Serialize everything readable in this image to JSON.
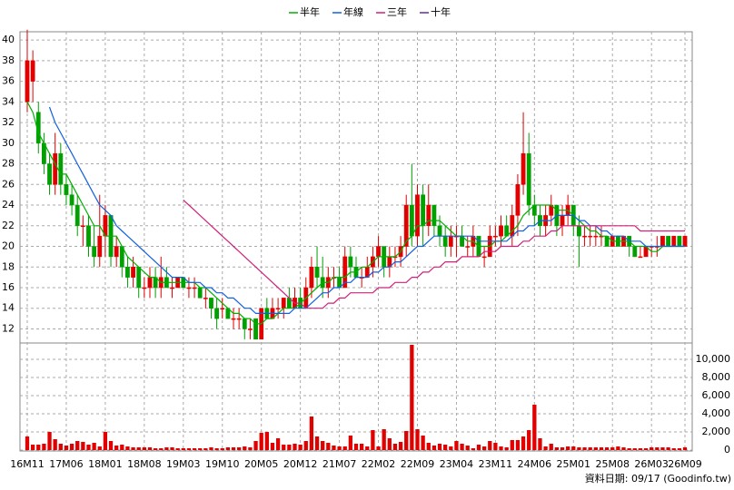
{
  "chart_data": {
    "type": "candlestick",
    "legend": [
      "半年",
      "年線",
      "三年",
      "十年"
    ],
    "categories": [
      "16M11",
      null,
      null,
      null,
      null,
      null,
      null,
      "17M06",
      null,
      null,
      null,
      null,
      null,
      null,
      "18M01",
      null,
      null,
      null,
      null,
      null,
      null,
      "18M08",
      null,
      null,
      null,
      null,
      null,
      null,
      "19M03",
      null,
      null,
      null,
      null,
      null,
      null,
      "19M10",
      null,
      null,
      null,
      null,
      null,
      null,
      "20M05",
      null,
      null,
      null,
      null,
      null,
      null,
      "20M12",
      null,
      null,
      null,
      null,
      null,
      null,
      "21M07",
      null,
      null,
      null,
      null,
      null,
      null,
      "22M02",
      null,
      null,
      null,
      null,
      null,
      null,
      "22M09",
      null,
      null,
      null,
      null,
      null,
      null,
      "23M04",
      null,
      null,
      null,
      null,
      null,
      null,
      "23M11",
      null,
      null,
      null,
      null,
      null,
      null,
      "24M06",
      null,
      null,
      null,
      null,
      null,
      null,
      "25M01",
      null,
      null,
      null,
      null,
      null,
      null,
      "25M08",
      null,
      null,
      null,
      null,
      null,
      null,
      "26M03",
      null,
      null,
      null,
      null,
      null,
      "26M09"
    ],
    "ohlc": [
      [
        34,
        41,
        33,
        38
      ],
      [
        36,
        39,
        34,
        38
      ],
      [
        33,
        34,
        29,
        30
      ],
      [
        30,
        31,
        27,
        28
      ],
      [
        28,
        29,
        25,
        26
      ],
      [
        26,
        31,
        25,
        29
      ],
      [
        29,
        30,
        25,
        26
      ],
      [
        26,
        27,
        24,
        25
      ],
      [
        25,
        26,
        23,
        24
      ],
      [
        24,
        25,
        21,
        22
      ],
      [
        22,
        23,
        20,
        22
      ],
      [
        22,
        23,
        19,
        20
      ],
      [
        20,
        22,
        18,
        19
      ],
      [
        19,
        25,
        18,
        21
      ],
      [
        21,
        24,
        19,
        23
      ],
      [
        23,
        23,
        18,
        19
      ],
      [
        19,
        21,
        18,
        20
      ],
      [
        20,
        20,
        17,
        18
      ],
      [
        18,
        19,
        16,
        17
      ],
      [
        17,
        19,
        16,
        18
      ],
      [
        18,
        18,
        15,
        16
      ],
      [
        16,
        17,
        15,
        16
      ],
      [
        16,
        18,
        15,
        17
      ],
      [
        17,
        18,
        15,
        16
      ],
      [
        16,
        19,
        15,
        17
      ],
      [
        17,
        18,
        16,
        16
      ],
      [
        16,
        17,
        15,
        16
      ],
      [
        16,
        17,
        16,
        17
      ],
      [
        17,
        17,
        16,
        16
      ],
      [
        16,
        17,
        15,
        16
      ],
      [
        16,
        17,
        15,
        16
      ],
      [
        16,
        16,
        15,
        15
      ],
      [
        15,
        16,
        14,
        15
      ],
      [
        15,
        15,
        13,
        14
      ],
      [
        14,
        15,
        12,
        13
      ],
      [
        14,
        15,
        13,
        14
      ],
      [
        14,
        14,
        13,
        13
      ],
      [
        13,
        14,
        12,
        13
      ],
      [
        13,
        14,
        12,
        13
      ],
      [
        13,
        13,
        11,
        12
      ],
      [
        12,
        13,
        11,
        12
      ],
      [
        13,
        13,
        11,
        11
      ],
      [
        11,
        14,
        11,
        14
      ],
      [
        14,
        15,
        13,
        13
      ],
      [
        13,
        15,
        13,
        14
      ],
      [
        14,
        15,
        13,
        14
      ],
      [
        14,
        15,
        13,
        15
      ],
      [
        15,
        16,
        14,
        14
      ],
      [
        14,
        16,
        14,
        15
      ],
      [
        15,
        16,
        14,
        14
      ],
      [
        14,
        17,
        14,
        16
      ],
      [
        16,
        19,
        15,
        18
      ],
      [
        18,
        20,
        16,
        17
      ],
      [
        17,
        19,
        15,
        16
      ],
      [
        16,
        18,
        15,
        17
      ],
      [
        17,
        18,
        16,
        17
      ],
      [
        17,
        18,
        16,
        16
      ],
      [
        16,
        20,
        16,
        19
      ],
      [
        19,
        20,
        17,
        18
      ],
      [
        18,
        19,
        17,
        17
      ],
      [
        17,
        18,
        16,
        17
      ],
      [
        17,
        19,
        17,
        18
      ],
      [
        18,
        20,
        17,
        19
      ],
      [
        19,
        21,
        18,
        20
      ],
      [
        20,
        20,
        17,
        18
      ],
      [
        18,
        20,
        17,
        19
      ],
      [
        19,
        20,
        18,
        19
      ],
      [
        19,
        21,
        18,
        20
      ],
      [
        20,
        25,
        19,
        24
      ],
      [
        24,
        28,
        20,
        21
      ],
      [
        21,
        26,
        20,
        25
      ],
      [
        25,
        26,
        20,
        22
      ],
      [
        22,
        26,
        21,
        24
      ],
      [
        24,
        24,
        21,
        22
      ],
      [
        22,
        23,
        20,
        21
      ],
      [
        21,
        22,
        19,
        20
      ],
      [
        20,
        22,
        19,
        21
      ],
      [
        21,
        22,
        19,
        21
      ],
      [
        21,
        22,
        20,
        20
      ],
      [
        20,
        21,
        19,
        20
      ],
      [
        20,
        22,
        19,
        21
      ],
      [
        21,
        21,
        19,
        19
      ],
      [
        19,
        20,
        18,
        19
      ],
      [
        19,
        22,
        19,
        21
      ],
      [
        21,
        22,
        20,
        21
      ],
      [
        21,
        23,
        20,
        22
      ],
      [
        22,
        23,
        21,
        21
      ],
      [
        21,
        24,
        20,
        23
      ],
      [
        23,
        27,
        21,
        26
      ],
      [
        26,
        33,
        25,
        29
      ],
      [
        29,
        31,
        23,
        24
      ],
      [
        24,
        25,
        22,
        23
      ],
      [
        23,
        24,
        21,
        22
      ],
      [
        22,
        24,
        21,
        23
      ],
      [
        23,
        25,
        22,
        24
      ],
      [
        24,
        24,
        21,
        22
      ],
      [
        22,
        24,
        21,
        23
      ],
      [
        23,
        25,
        22,
        24
      ],
      [
        24,
        24,
        21,
        22
      ],
      [
        22,
        23,
        18,
        21
      ],
      [
        21,
        22,
        20,
        21
      ],
      [
        21,
        22,
        20,
        21
      ],
      [
        21,
        22,
        20,
        21
      ],
      [
        21,
        22,
        20,
        21
      ],
      [
        21,
        21,
        20,
        20
      ],
      [
        20,
        21,
        20,
        21
      ],
      [
        21,
        21,
        20,
        20
      ],
      [
        20,
        21,
        20,
        21
      ],
      [
        21,
        21,
        19,
        20
      ],
      [
        20,
        20,
        19,
        19
      ],
      [
        19,
        20,
        19,
        19
      ],
      [
        19,
        20,
        19,
        20
      ],
      [
        20,
        20,
        19,
        20
      ],
      [
        20,
        21,
        19,
        20
      ],
      [
        20,
        21,
        20,
        21
      ],
      [
        21,
        21,
        20,
        20
      ],
      [
        20,
        21,
        20,
        21
      ],
      [
        21,
        21,
        20,
        20
      ],
      [
        20,
        21,
        20,
        21
      ]
    ],
    "up_color": "#e00000",
    "down_color": "#00a000",
    "series": [
      {
        "name": "半年",
        "color": "#00b000",
        "values": [
          34,
          33,
          31,
          30,
          29,
          28,
          27,
          27,
          26,
          25,
          24,
          23,
          22,
          22,
          21,
          21,
          21,
          20,
          19,
          18.5,
          18,
          17.5,
          17,
          17,
          16.5,
          16.5,
          16.5,
          16.5,
          16.5,
          16.5,
          16.5,
          16,
          16,
          15.5,
          15,
          14.5,
          14,
          13.5,
          13.5,
          13,
          13,
          12.5,
          12.5,
          13,
          13,
          13.5,
          14,
          14,
          14,
          14.5,
          15,
          15.5,
          16,
          16.5,
          16.5,
          17,
          17,
          17,
          17.5,
          17.5,
          18,
          18,
          18.5,
          19,
          19,
          19,
          19,
          19.5,
          20.5,
          21,
          22,
          22,
          22.5,
          22.5,
          22.5,
          22,
          21.5,
          21,
          21,
          20.5,
          20.5,
          20,
          20,
          20,
          20.5,
          20.5,
          21,
          21.5,
          22,
          23,
          23.5,
          24,
          24,
          24,
          24,
          23.5,
          23.5,
          23.5,
          23,
          22.5,
          22,
          21.5,
          21.5,
          21,
          21,
          20.5,
          20.5,
          20.5,
          20.5,
          20,
          20,
          20,
          19.5,
          19.5,
          20,
          20,
          20,
          20,
          20
        ]
      },
      {
        "name": "年線",
        "color": "#1060e0",
        "values": [
          null,
          null,
          null,
          null,
          33.5,
          32,
          31,
          30,
          29,
          28,
          27,
          26,
          25,
          24,
          23.5,
          23,
          22,
          21.5,
          21,
          20.5,
          20,
          19.5,
          19,
          18.5,
          18,
          17.5,
          17,
          17,
          17,
          16.5,
          16.5,
          16.5,
          16,
          16,
          15.5,
          15.5,
          15,
          15,
          14.5,
          14,
          14,
          13.5,
          13.5,
          13.5,
          13.5,
          13.5,
          13.5,
          13.5,
          14,
          14,
          14,
          14.5,
          15,
          15.5,
          15.5,
          16,
          16,
          16.5,
          16.5,
          17,
          17,
          17,
          17.5,
          17.5,
          18,
          18,
          18.5,
          18.5,
          19,
          19.5,
          20,
          20,
          20.5,
          21,
          21,
          21,
          21,
          21,
          21,
          21,
          21,
          20.5,
          20.5,
          20.5,
          20.5,
          20.5,
          20.5,
          21,
          21.5,
          21.5,
          22,
          22,
          22.5,
          22.5,
          22.5,
          23,
          23,
          23,
          23,
          22.5,
          22.5,
          22,
          22,
          21.5,
          21.5,
          21,
          21,
          21,
          20.5,
          20.5,
          20.5,
          20,
          20,
          20,
          20,
          20,
          20,
          20,
          20
        ]
      },
      {
        "name": "三年",
        "color": "#d0207a",
        "values": [
          null,
          null,
          null,
          null,
          null,
          null,
          null,
          null,
          null,
          null,
          null,
          null,
          null,
          null,
          null,
          null,
          null,
          null,
          null,
          null,
          null,
          null,
          null,
          null,
          null,
          null,
          null,
          null,
          24.5,
          24,
          23.5,
          23,
          22.5,
          22,
          21.5,
          21,
          20.5,
          20,
          19.5,
          19,
          18.5,
          18,
          17.5,
          17,
          16.5,
          16,
          15.5,
          15,
          14.5,
          14.5,
          14,
          14,
          14,
          14,
          14.5,
          14.5,
          15,
          15,
          15.5,
          15.5,
          15.5,
          15.5,
          15.5,
          16,
          16,
          16,
          16.5,
          16.5,
          16.5,
          17,
          17,
          17.5,
          17.5,
          18,
          18,
          18.5,
          18.5,
          18.5,
          19,
          19,
          19,
          19,
          19.5,
          19.5,
          19.5,
          20,
          20,
          20,
          20,
          20.5,
          20.5,
          21,
          21,
          21,
          21.5,
          21.5,
          22,
          22,
          22,
          22,
          22,
          22,
          22,
          22,
          22,
          22,
          22,
          22,
          22,
          22,
          21.5,
          21.5,
          21.5,
          21.5,
          21.5,
          21.5,
          21.5,
          21.5,
          21.5
        ]
      },
      {
        "name": "十年",
        "color": "#6030a0",
        "values": [
          null,
          null,
          null,
          null,
          null,
          null,
          null,
          null,
          null,
          null,
          null,
          null,
          null,
          null,
          null,
          null,
          null,
          null,
          null,
          null,
          null,
          null,
          null,
          null,
          null,
          null,
          null,
          null,
          null,
          null,
          null,
          null,
          null,
          null,
          null,
          null,
          null,
          null,
          null,
          null,
          null,
          null,
          null,
          null,
          null,
          null,
          null,
          null,
          null,
          null,
          null,
          null,
          null,
          null,
          null,
          null,
          null,
          null,
          null,
          null,
          null,
          null,
          null,
          null,
          null,
          null,
          null,
          null,
          null,
          null,
          null,
          null,
          null,
          null,
          null,
          null,
          null,
          null,
          null,
          null,
          null,
          null,
          null,
          null,
          null,
          null,
          null,
          null,
          null,
          null,
          null,
          null,
          null,
          null,
          null,
          null,
          null,
          null,
          null,
          null,
          null,
          null,
          null,
          null,
          null,
          null,
          null,
          null,
          null,
          null,
          null,
          null,
          null,
          null,
          null,
          null,
          null,
          null,
          null
        ]
      }
    ],
    "ylim": [
      10.9,
      40.8
    ],
    "yticks": [
      12,
      14,
      16,
      18,
      20,
      22,
      24,
      26,
      28,
      30,
      32,
      34,
      36,
      38,
      40
    ],
    "volume": {
      "color": "#e00000",
      "values": [
        1500,
        600,
        600,
        700,
        2000,
        1200,
        700,
        500,
        700,
        1000,
        900,
        600,
        800,
        400,
        2000,
        1000,
        500,
        600,
        400,
        300,
        300,
        300,
        300,
        200,
        200,
        300,
        300,
        200,
        200,
        200,
        200,
        200,
        200,
        300,
        200,
        200,
        300,
        300,
        300,
        400,
        300,
        1000,
        1900,
        2000,
        800,
        1300,
        600,
        600,
        700,
        600,
        1000,
        3700,
        1500,
        1000,
        800,
        500,
        400,
        400,
        1600,
        700,
        700,
        400,
        2200,
        400,
        2300,
        1300,
        700,
        900,
        2100,
        11600,
        2300,
        1600,
        800,
        500,
        700,
        600,
        400,
        1000,
        700,
        500,
        200,
        600,
        400,
        1000,
        800,
        400,
        300,
        1100,
        1100,
        1500,
        2200,
        5000,
        1300,
        400,
        700,
        300,
        300,
        400,
        400,
        300,
        300,
        300,
        300,
        300,
        300,
        300,
        400,
        300,
        200,
        200,
        200,
        200,
        300,
        300,
        300,
        300,
        200,
        200,
        300
      ],
      "ylim": [
        0,
        11600
      ],
      "yticks": [
        {
          "value": 0,
          "label": "0"
        },
        {
          "value": 2000,
          "label": "2,000"
        },
        {
          "value": 4000,
          "label": "4,000"
        },
        {
          "value": 6000,
          "label": "6,000"
        },
        {
          "value": 8000,
          "label": "8,000"
        },
        {
          "value": 10000,
          "label": "10,000"
        }
      ]
    },
    "grid": true,
    "source": "資料日期: 09/17 (Goodinfo.tw)"
  }
}
